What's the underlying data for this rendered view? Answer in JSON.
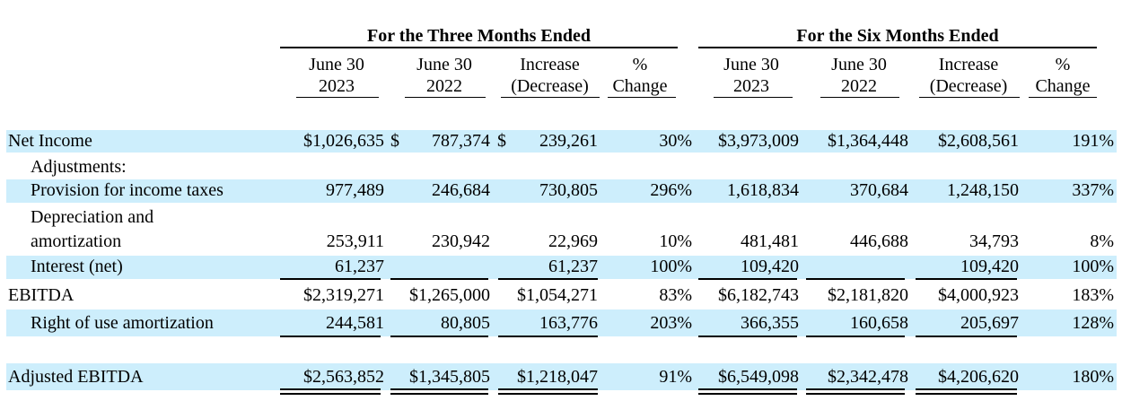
{
  "headers": {
    "group_three": "For the Three Months Ended",
    "group_six": "For the Six Months Ended",
    "columns": [
      {
        "line1": "June 30",
        "line2": "2023"
      },
      {
        "line1": "June 30",
        "line2": "2022"
      },
      {
        "line1": "Increase",
        "line2": "(Decrease)"
      },
      {
        "line1": "%",
        "line2": "Change"
      },
      {
        "line1": "June 30",
        "line2": "2023"
      },
      {
        "line1": "June 30",
        "line2": "2022"
      },
      {
        "line1": "Increase",
        "line2": "(Decrease)"
      },
      {
        "line1": "%",
        "line2": "Change"
      }
    ]
  },
  "rows": [
    {
      "label": "Net Income",
      "values": [
        "$1,026,635",
        "787,374",
        "239,261",
        "30%",
        "$3,973,009",
        "$1,364,448",
        "$2,608,561",
        "191%"
      ]
    },
    {
      "label": "Adjustments:"
    },
    {
      "label": "Provision for income taxes",
      "values": [
        "977,489",
        "246,684",
        "730,805",
        "296%",
        "1,618,834",
        "370,684",
        "1,248,150",
        "337%"
      ]
    },
    {
      "label": "Depreciation and",
      "label2": "amortization",
      "values": [
        "253,911",
        "230,942",
        "22,969",
        "10%",
        "481,481",
        "446,688",
        "34,793",
        "8%"
      ]
    },
    {
      "label": "Interest (net)",
      "values": [
        "61,237",
        "",
        "61,237",
        "100%",
        "109,420",
        "",
        "109,420",
        "100%"
      ]
    },
    {
      "label": "EBITDA",
      "values": [
        "$2,319,271",
        "$1,265,000",
        "$1,054,271",
        "83%",
        "$6,182,743",
        "$2,181,820",
        "$4,000,923",
        "183%"
      ]
    },
    {
      "label": "Right of use amortization",
      "values": [
        "244,581",
        "80,805",
        "163,776",
        "203%",
        "366,355",
        "160,658",
        "205,697",
        "128%"
      ]
    },
    {
      "label": "Adjusted EBITDA",
      "values": [
        "$2,563,852",
        "$1,345,805",
        "$1,218,047",
        "91%",
        "$6,549,098",
        "$2,342,478",
        "$4,206,620",
        "180%"
      ]
    }
  ],
  "currency_symbol": "$"
}
